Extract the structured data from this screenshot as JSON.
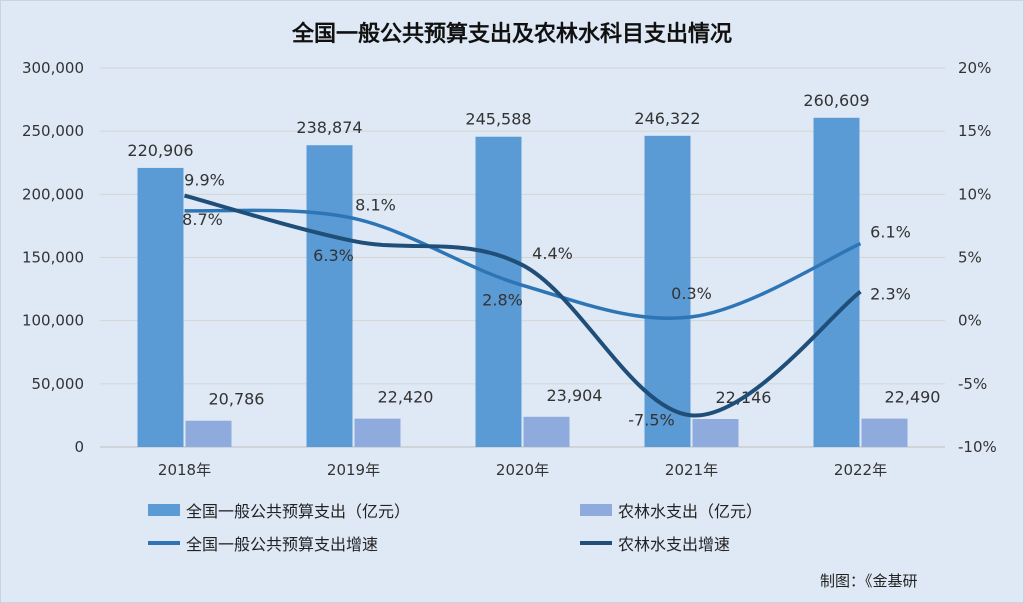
{
  "chart_data": {
    "type": "bar+line",
    "title": "全国一般公共预算支出及农林水科目支出情况",
    "categories": [
      "2018年",
      "2019年",
      "2020年",
      "2021年",
      "2022年"
    ],
    "series": [
      {
        "name": "全国一般公共预算支出（亿元）",
        "type": "bar",
        "axis": "left",
        "color": "#5b9bd5",
        "values": [
          220906,
          238874,
          245588,
          246322,
          260609
        ],
        "labels": [
          "220,906",
          "238,874",
          "245,588",
          "246,322",
          "260,609"
        ]
      },
      {
        "name": "农林水支出（亿元）",
        "type": "bar",
        "axis": "left",
        "color": "#8faadc",
        "values": [
          20786,
          22420,
          23904,
          22146,
          22490
        ],
        "labels": [
          "20,786",
          "22,420",
          "23,904",
          "22,146",
          "22,490"
        ]
      },
      {
        "name": "全国一般公共预算支出增速",
        "type": "line",
        "axis": "right",
        "color": "#2e75b6",
        "values": [
          8.7,
          8.1,
          2.8,
          0.3,
          6.1
        ],
        "labels": [
          "8.7%",
          "8.1%",
          "2.8%",
          "0.3%",
          "6.1%"
        ]
      },
      {
        "name": "农林水支出增速",
        "type": "line",
        "axis": "right",
        "color": "#1f4e79",
        "values": [
          9.9,
          6.3,
          4.4,
          -7.5,
          2.3
        ],
        "labels": [
          "9.9%",
          "6.3%",
          "4.4%",
          "-7.5%",
          "2.3%"
        ]
      }
    ],
    "y_left": {
      "ylim": [
        0,
        300000
      ],
      "ticks": [
        "0",
        "50,000",
        "100,000",
        "150,000",
        "200,000",
        "250,000",
        "300,000"
      ]
    },
    "y_right": {
      "ylim": [
        -10,
        20
      ],
      "ticks": [
        "-10%",
        "-5%",
        "0%",
        "5%",
        "10%",
        "15%",
        "20%"
      ]
    },
    "grid": true,
    "legend_position": "bottom"
  },
  "footer": "制图：《金基研"
}
